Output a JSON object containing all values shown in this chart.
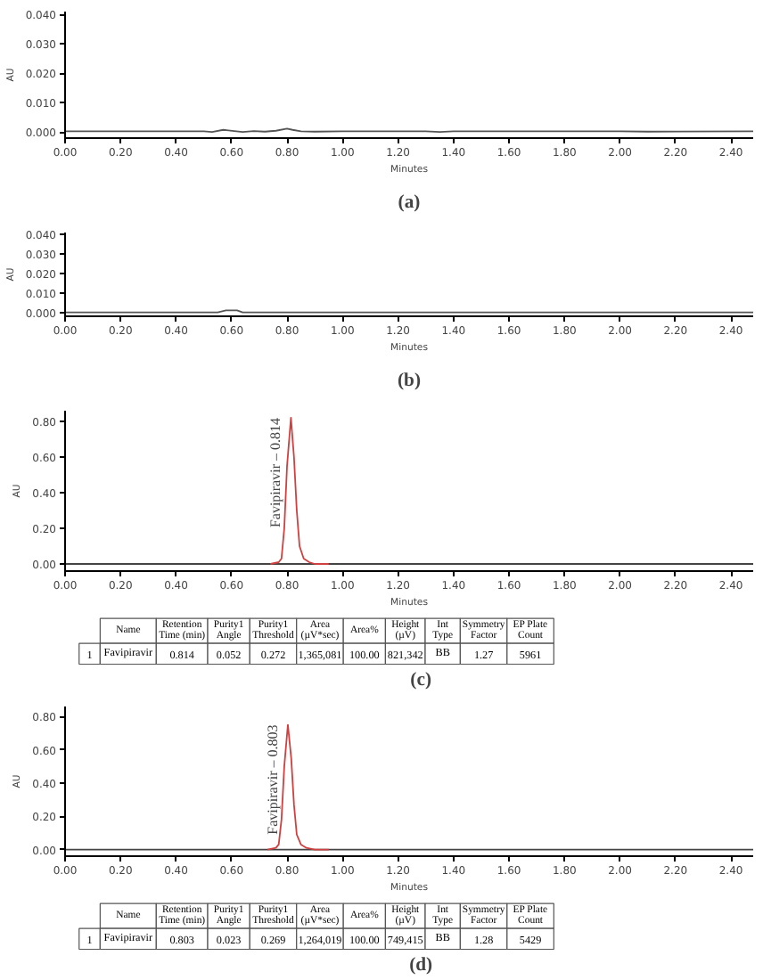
{
  "chart_data": [
    {
      "type": "line",
      "title": "(a)",
      "xlabel": "Minutes",
      "ylabel": "AU",
      "xlim": [
        0,
        2.48
      ],
      "ylim": [
        -0.002,
        0.041
      ],
      "xticks": [
        {
          "value": 0,
          "label": "0.00"
        },
        {
          "value": 0.2,
          "label": "0.20"
        },
        {
          "value": 0.4,
          "label": "0.40"
        },
        {
          "value": 0.6,
          "label": "0.60"
        },
        {
          "value": 0.8,
          "label": "0.80"
        },
        {
          "value": 1.0,
          "label": "1.00"
        },
        {
          "value": 1.2,
          "label": "1.20"
        },
        {
          "value": 1.4,
          "label": "1.40"
        },
        {
          "value": 1.6,
          "label": "1.60"
        },
        {
          "value": 1.8,
          "label": "1.80"
        },
        {
          "value": 2.0,
          "label": "2.00"
        },
        {
          "value": 2.2,
          "label": "2.20"
        },
        {
          "value": 2.4,
          "label": "2.40"
        }
      ],
      "yticks": [
        {
          "value": 0,
          "label": "0.000"
        },
        {
          "value": 0.01,
          "label": "0.010"
        },
        {
          "value": 0.02,
          "label": "0.020"
        },
        {
          "value": 0.03,
          "label": "0.030"
        },
        {
          "value": 0.04,
          "label": "0.040"
        }
      ],
      "grid": false,
      "series": [
        {
          "color": "#555555",
          "x": [
            0,
            0.5,
            0.53,
            0.57,
            0.61,
            0.64,
            0.68,
            0.72,
            0.76,
            0.8,
            0.82,
            0.85,
            0.9,
            1.0,
            1.3,
            1.35,
            1.4,
            2.0,
            2.1,
            2.48
          ],
          "values": [
            0.0003,
            0.0003,
            0.0001,
            0.0008,
            0.0004,
            0.0001,
            0.0004,
            0.0002,
            0.0005,
            0.0012,
            0.0008,
            0.0003,
            0.0002,
            0.0003,
            0.0003,
            0.0001,
            0.0003,
            0.0003,
            0.0002,
            0.0003
          ]
        }
      ]
    },
    {
      "type": "line",
      "title": "(b)",
      "xlabel": "Minutes",
      "ylabel": "AU",
      "xlim": [
        0,
        2.48
      ],
      "ylim": [
        -0.002,
        0.041
      ],
      "xticks": [
        {
          "value": 0,
          "label": "0.00"
        },
        {
          "value": 0.2,
          "label": "0.20"
        },
        {
          "value": 0.4,
          "label": "0.40"
        },
        {
          "value": 0.6,
          "label": "0.60"
        },
        {
          "value": 0.8,
          "label": "0.80"
        },
        {
          "value": 1.0,
          "label": "1.00"
        },
        {
          "value": 1.2,
          "label": "1.20"
        },
        {
          "value": 1.4,
          "label": "1.40"
        },
        {
          "value": 1.6,
          "label": "1.60"
        },
        {
          "value": 1.8,
          "label": "1.80"
        },
        {
          "value": 2.0,
          "label": "2.00"
        },
        {
          "value": 2.2,
          "label": "2.20"
        },
        {
          "value": 2.4,
          "label": "2.40"
        }
      ],
      "yticks": [
        {
          "value": 0,
          "label": "0.000"
        },
        {
          "value": 0.01,
          "label": "0.010"
        },
        {
          "value": 0.02,
          "label": "0.020"
        },
        {
          "value": 0.03,
          "label": "0.030"
        },
        {
          "value": 0.04,
          "label": "0.040"
        }
      ],
      "grid": false,
      "series": [
        {
          "color": "#555555",
          "x": [
            0,
            0.55,
            0.58,
            0.62,
            0.64,
            1.0,
            2.48
          ],
          "values": [
            0.0,
            0.0,
            0.001,
            0.001,
            0.0,
            0.0,
            0.0
          ]
        }
      ]
    },
    {
      "type": "line",
      "title": "(c)",
      "xlabel": "Minutes",
      "ylabel": "AU",
      "xlim": [
        0,
        2.48
      ],
      "ylim": [
        -0.04,
        0.86
      ],
      "xticks": [
        {
          "value": 0,
          "label": "0.00"
        },
        {
          "value": 0.2,
          "label": "0.20"
        },
        {
          "value": 0.4,
          "label": "0.40"
        },
        {
          "value": 0.6,
          "label": "0.60"
        },
        {
          "value": 0.8,
          "label": "0.80"
        },
        {
          "value": 1.0,
          "label": "1.00"
        },
        {
          "value": 1.2,
          "label": "1.20"
        },
        {
          "value": 1.4,
          "label": "1.40"
        },
        {
          "value": 1.6,
          "label": "1.60"
        },
        {
          "value": 1.8,
          "label": "1.80"
        },
        {
          "value": 2.0,
          "label": "2.00"
        },
        {
          "value": 2.2,
          "label": "2.20"
        },
        {
          "value": 2.4,
          "label": "2.40"
        }
      ],
      "yticks": [
        {
          "value": 0,
          "label": "0.00"
        },
        {
          "value": 0.2,
          "label": "0.20"
        },
        {
          "value": 0.4,
          "label": "0.40"
        },
        {
          "value": 0.6,
          "label": "0.60"
        },
        {
          "value": 0.8,
          "label": "0.80"
        }
      ],
      "grid": false,
      "annotations": [
        {
          "text": "Favipiravir – 0.814",
          "x": 0.814,
          "y": 0.82
        },
        "Name",
        "Retention Time (min)",
        "Purity1 Angle",
        "Purity1 Threshold",
        "Area (µV*sec)",
        "Area%",
        "Height (µV)",
        "Int Type",
        "Symmetry Factor",
        "EP Plate Count",
        "1",
        "Favipiravir",
        "0.814",
        "0.052",
        "0.272",
        "1,365,081",
        "100.00",
        "821,342",
        "BB",
        "1.27",
        "5961"
      ],
      "series": [
        {
          "color": "#444444",
          "x": [
            0,
            0.74,
            0.95,
            2.48
          ],
          "values": [
            0,
            0,
            0,
            0
          ]
        },
        {
          "color": "#d04040",
          "x": [
            0.74,
            0.77,
            0.78,
            0.79,
            0.8,
            0.814,
            0.825,
            0.835,
            0.845,
            0.86,
            0.88,
            0.9,
            0.95
          ],
          "values": [
            0,
            0.01,
            0.03,
            0.2,
            0.55,
            0.82,
            0.6,
            0.3,
            0.1,
            0.03,
            0.01,
            0.0,
            0
          ]
        }
      ]
    },
    {
      "type": "line",
      "title": "(d)",
      "xlabel": "Minutes",
      "ylabel": "AU",
      "xlim": [
        0,
        2.48
      ],
      "ylim": [
        -0.04,
        0.86
      ],
      "xticks": [
        {
          "value": 0,
          "label": "0.00"
        },
        {
          "value": 0.2,
          "label": "0.20"
        },
        {
          "value": 0.4,
          "label": "0.40"
        },
        {
          "value": 0.6,
          "label": "0.60"
        },
        {
          "value": 0.8,
          "label": "0.80"
        },
        {
          "value": 1.0,
          "label": "1.00"
        },
        {
          "value": 1.2,
          "label": "1.20"
        },
        {
          "value": 1.4,
          "label": "1.40"
        },
        {
          "value": 1.6,
          "label": "1.60"
        },
        {
          "value": 1.8,
          "label": "1.80"
        },
        {
          "value": 2.0,
          "label": "2.00"
        },
        {
          "value": 2.2,
          "label": "2.20"
        },
        {
          "value": 2.4,
          "label": "2.40"
        }
      ],
      "yticks": [
        {
          "value": 0,
          "label": "0.00"
        },
        {
          "value": 0.2,
          "label": "0.20"
        },
        {
          "value": 0.4,
          "label": "0.40"
        },
        {
          "value": 0.6,
          "label": "0.60"
        },
        {
          "value": 0.8,
          "label": "0.80"
        }
      ],
      "grid": false,
      "annotations": [
        {
          "text": "Favipiravir – 0.803",
          "x": 0.803,
          "y": 0.75
        },
        "Name",
        "Retention Time (min)",
        "Purity1 Angle",
        "Purity1 Threshold",
        "Area (µV*sec)",
        "Area%",
        "Height (µV)",
        "Int Type",
        "Symmetry Factor",
        "EP Plate Count",
        "1",
        "Favipiravir",
        "0.803",
        "0.023",
        "0.269",
        "1,264,019",
        "100.00",
        "749,415",
        "BB",
        "1.28",
        "5429"
      ],
      "series": [
        {
          "color": "#444444",
          "x": [
            0,
            0.73,
            0.95,
            2.48
          ],
          "values": [
            0,
            0,
            0,
            0
          ]
        },
        {
          "color": "#d04040",
          "x": [
            0.73,
            0.76,
            0.77,
            0.78,
            0.79,
            0.803,
            0.815,
            0.825,
            0.835,
            0.85,
            0.87,
            0.9,
            0.95
          ],
          "values": [
            0,
            0.01,
            0.03,
            0.18,
            0.5,
            0.75,
            0.55,
            0.27,
            0.09,
            0.03,
            0.01,
            0.0,
            0
          ]
        }
      ]
    }
  ]
}
